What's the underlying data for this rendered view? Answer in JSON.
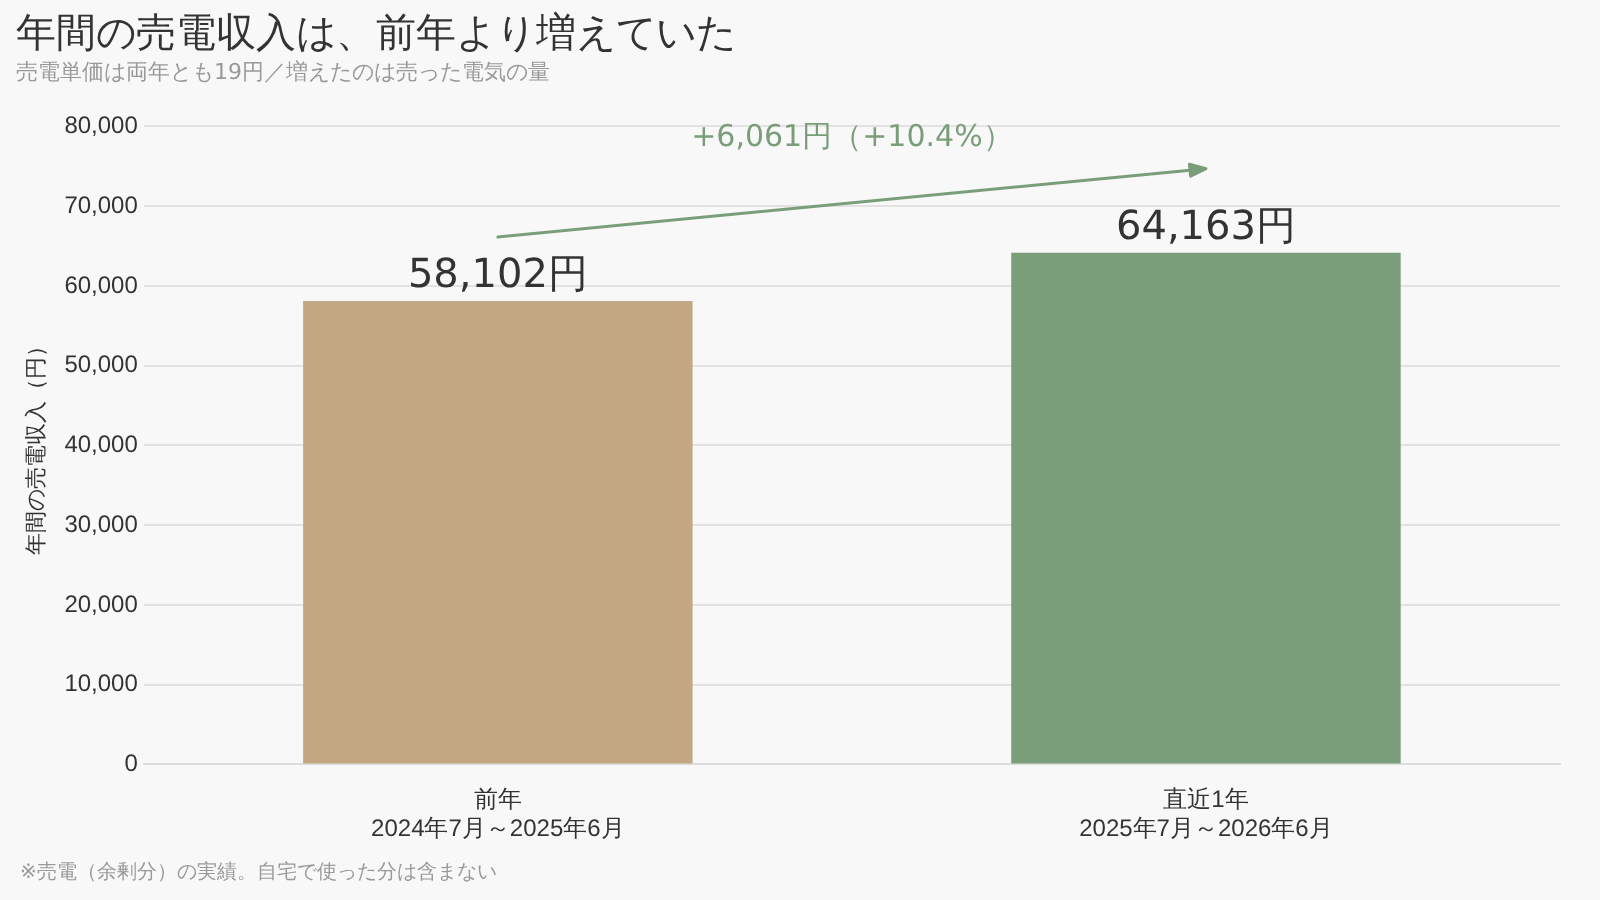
{
  "chart_data": {
    "type": "bar",
    "title": "年間の売電収入は、前年より増えていた",
    "subtitle": "売電単価は両年とも19円／増えたのは売った電気の量",
    "ylabel": "年間の売電収入（円）",
    "categories": [
      "前年\n2024年7月～2025年6月",
      "直近1年\n2025年7月～2026年6月"
    ],
    "values": [
      58102,
      64163
    ],
    "colors": [
      "#c2a882",
      "#7a9e79"
    ],
    "value_labels": [
      "58,102円",
      "64,163円"
    ],
    "ylim": [
      0,
      80000
    ],
    "yticks": [
      0,
      {
        "value": 10000,
        "label": "10,000"
      },
      {
        "value": 20000,
        "label": "20,000"
      },
      {
        "value": 30000,
        "label": "30,000"
      },
      {
        "value": 40000,
        "label": "40,000"
      },
      {
        "value": 50000,
        "label": "50,000"
      },
      {
        "value": 60000,
        "label": "60,000"
      },
      {
        "value": 70000,
        "label": "70,000"
      },
      {
        "value": 80000,
        "label": "80,000"
      }
    ],
    "grid": "y",
    "legend": false,
    "annotations": [
      "+6,061円（+10.4%）",
      "※売電（余剰分）の実績。自宅で使った分は含まない"
    ]
  }
}
